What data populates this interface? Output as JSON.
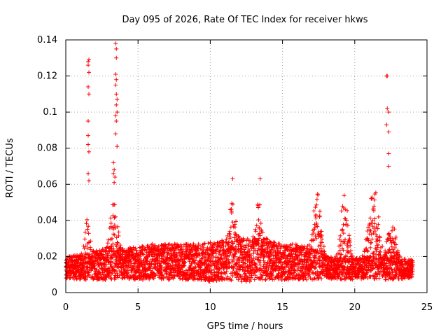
{
  "chart_data": {
    "type": "scatter",
    "title": "Day 095 of 2026, Rate Of TEC Index for receiver hkws",
    "xlabel": "GPS time / hours",
    "ylabel": "ROTI / TECUs",
    "xlim": [
      0,
      25
    ],
    "ylim": [
      0,
      0.14
    ],
    "x_ticks": [
      0,
      5,
      10,
      15,
      20,
      25
    ],
    "x_tick_labels": [
      "0",
      "5",
      "10",
      "15",
      "20",
      "25"
    ],
    "y_ticks": [
      0,
      0.02,
      0.04,
      0.06,
      0.08,
      0.1,
      0.12,
      0.14
    ],
    "y_tick_labels": [
      "0",
      "0.02",
      "0.04",
      "0.06",
      "0.08",
      "0.1",
      "0.12",
      "0.14"
    ],
    "grid": true,
    "marker": "+",
    "marker_color": "#ff0000",
    "sampling": {
      "x_start": 0.0,
      "x_end": 24.0,
      "step_hours": 0.05
    },
    "baseline_profile": {
      "hours": [
        0,
        1,
        2,
        3,
        4,
        5,
        6,
        7,
        8,
        9,
        10,
        11,
        12,
        13,
        14,
        15,
        16,
        17,
        18,
        19,
        20,
        21,
        22,
        23,
        24
      ],
      "median_roti": [
        0.014,
        0.014,
        0.015,
        0.016,
        0.016,
        0.016,
        0.017,
        0.017,
        0.017,
        0.017,
        0.017,
        0.018,
        0.018,
        0.018,
        0.018,
        0.017,
        0.017,
        0.016,
        0.014,
        0.013,
        0.013,
        0.014,
        0.014,
        0.013,
        0.013
      ],
      "spread": [
        0.006,
        0.007,
        0.008,
        0.009,
        0.009,
        0.009,
        0.01,
        0.01,
        0.01,
        0.01,
        0.011,
        0.011,
        0.012,
        0.012,
        0.011,
        0.01,
        0.01,
        0.009,
        0.006,
        0.006,
        0.006,
        0.006,
        0.007,
        0.006,
        0.005
      ]
    },
    "enhancement_bursts": [
      {
        "center": 17.4,
        "width": 0.35,
        "peak": 0.055
      },
      {
        "center": 19.3,
        "width": 0.35,
        "peak": 0.053
      },
      {
        "center": 21.3,
        "width": 0.45,
        "peak": 0.057
      },
      {
        "center": 22.6,
        "width": 0.4,
        "peak": 0.036
      },
      {
        "center": 11.5,
        "width": 0.3,
        "peak": 0.045
      },
      {
        "center": 13.4,
        "width": 0.3,
        "peak": 0.045
      },
      {
        "center": 3.3,
        "width": 0.3,
        "peak": 0.05
      },
      {
        "center": 1.5,
        "width": 0.2,
        "peak": 0.04
      }
    ],
    "series": [
      {
        "name": "outliers",
        "points": [
          [
            1.55,
            0.128
          ],
          [
            1.55,
            0.126
          ],
          [
            1.6,
            0.129
          ],
          [
            1.6,
            0.122
          ],
          [
            1.55,
            0.114
          ],
          [
            1.6,
            0.11
          ],
          [
            1.55,
            0.095
          ],
          [
            1.55,
            0.087
          ],
          [
            1.55,
            0.082
          ],
          [
            1.6,
            0.078
          ],
          [
            1.55,
            0.066
          ],
          [
            1.6,
            0.062
          ],
          [
            3.45,
            0.138
          ],
          [
            3.5,
            0.135
          ],
          [
            3.5,
            0.13
          ],
          [
            3.45,
            0.121
          ],
          [
            3.5,
            0.118
          ],
          [
            3.45,
            0.115
          ],
          [
            3.5,
            0.11
          ],
          [
            3.55,
            0.107
          ],
          [
            3.5,
            0.104
          ],
          [
            3.55,
            0.1
          ],
          [
            3.45,
            0.098
          ],
          [
            3.5,
            0.095
          ],
          [
            3.45,
            0.088
          ],
          [
            3.55,
            0.081
          ],
          [
            3.3,
            0.072
          ],
          [
            3.35,
            0.068
          ],
          [
            3.3,
            0.066
          ],
          [
            3.4,
            0.064
          ],
          [
            3.35,
            0.061
          ],
          [
            11.55,
            0.063
          ],
          [
            13.45,
            0.063
          ],
          [
            22.2,
            0.12
          ],
          [
            22.25,
            0.12
          ],
          [
            22.25,
            0.102
          ],
          [
            22.35,
            0.1
          ],
          [
            22.2,
            0.093
          ],
          [
            22.35,
            0.089
          ],
          [
            22.35,
            0.077
          ],
          [
            22.35,
            0.07
          ]
        ]
      }
    ]
  }
}
